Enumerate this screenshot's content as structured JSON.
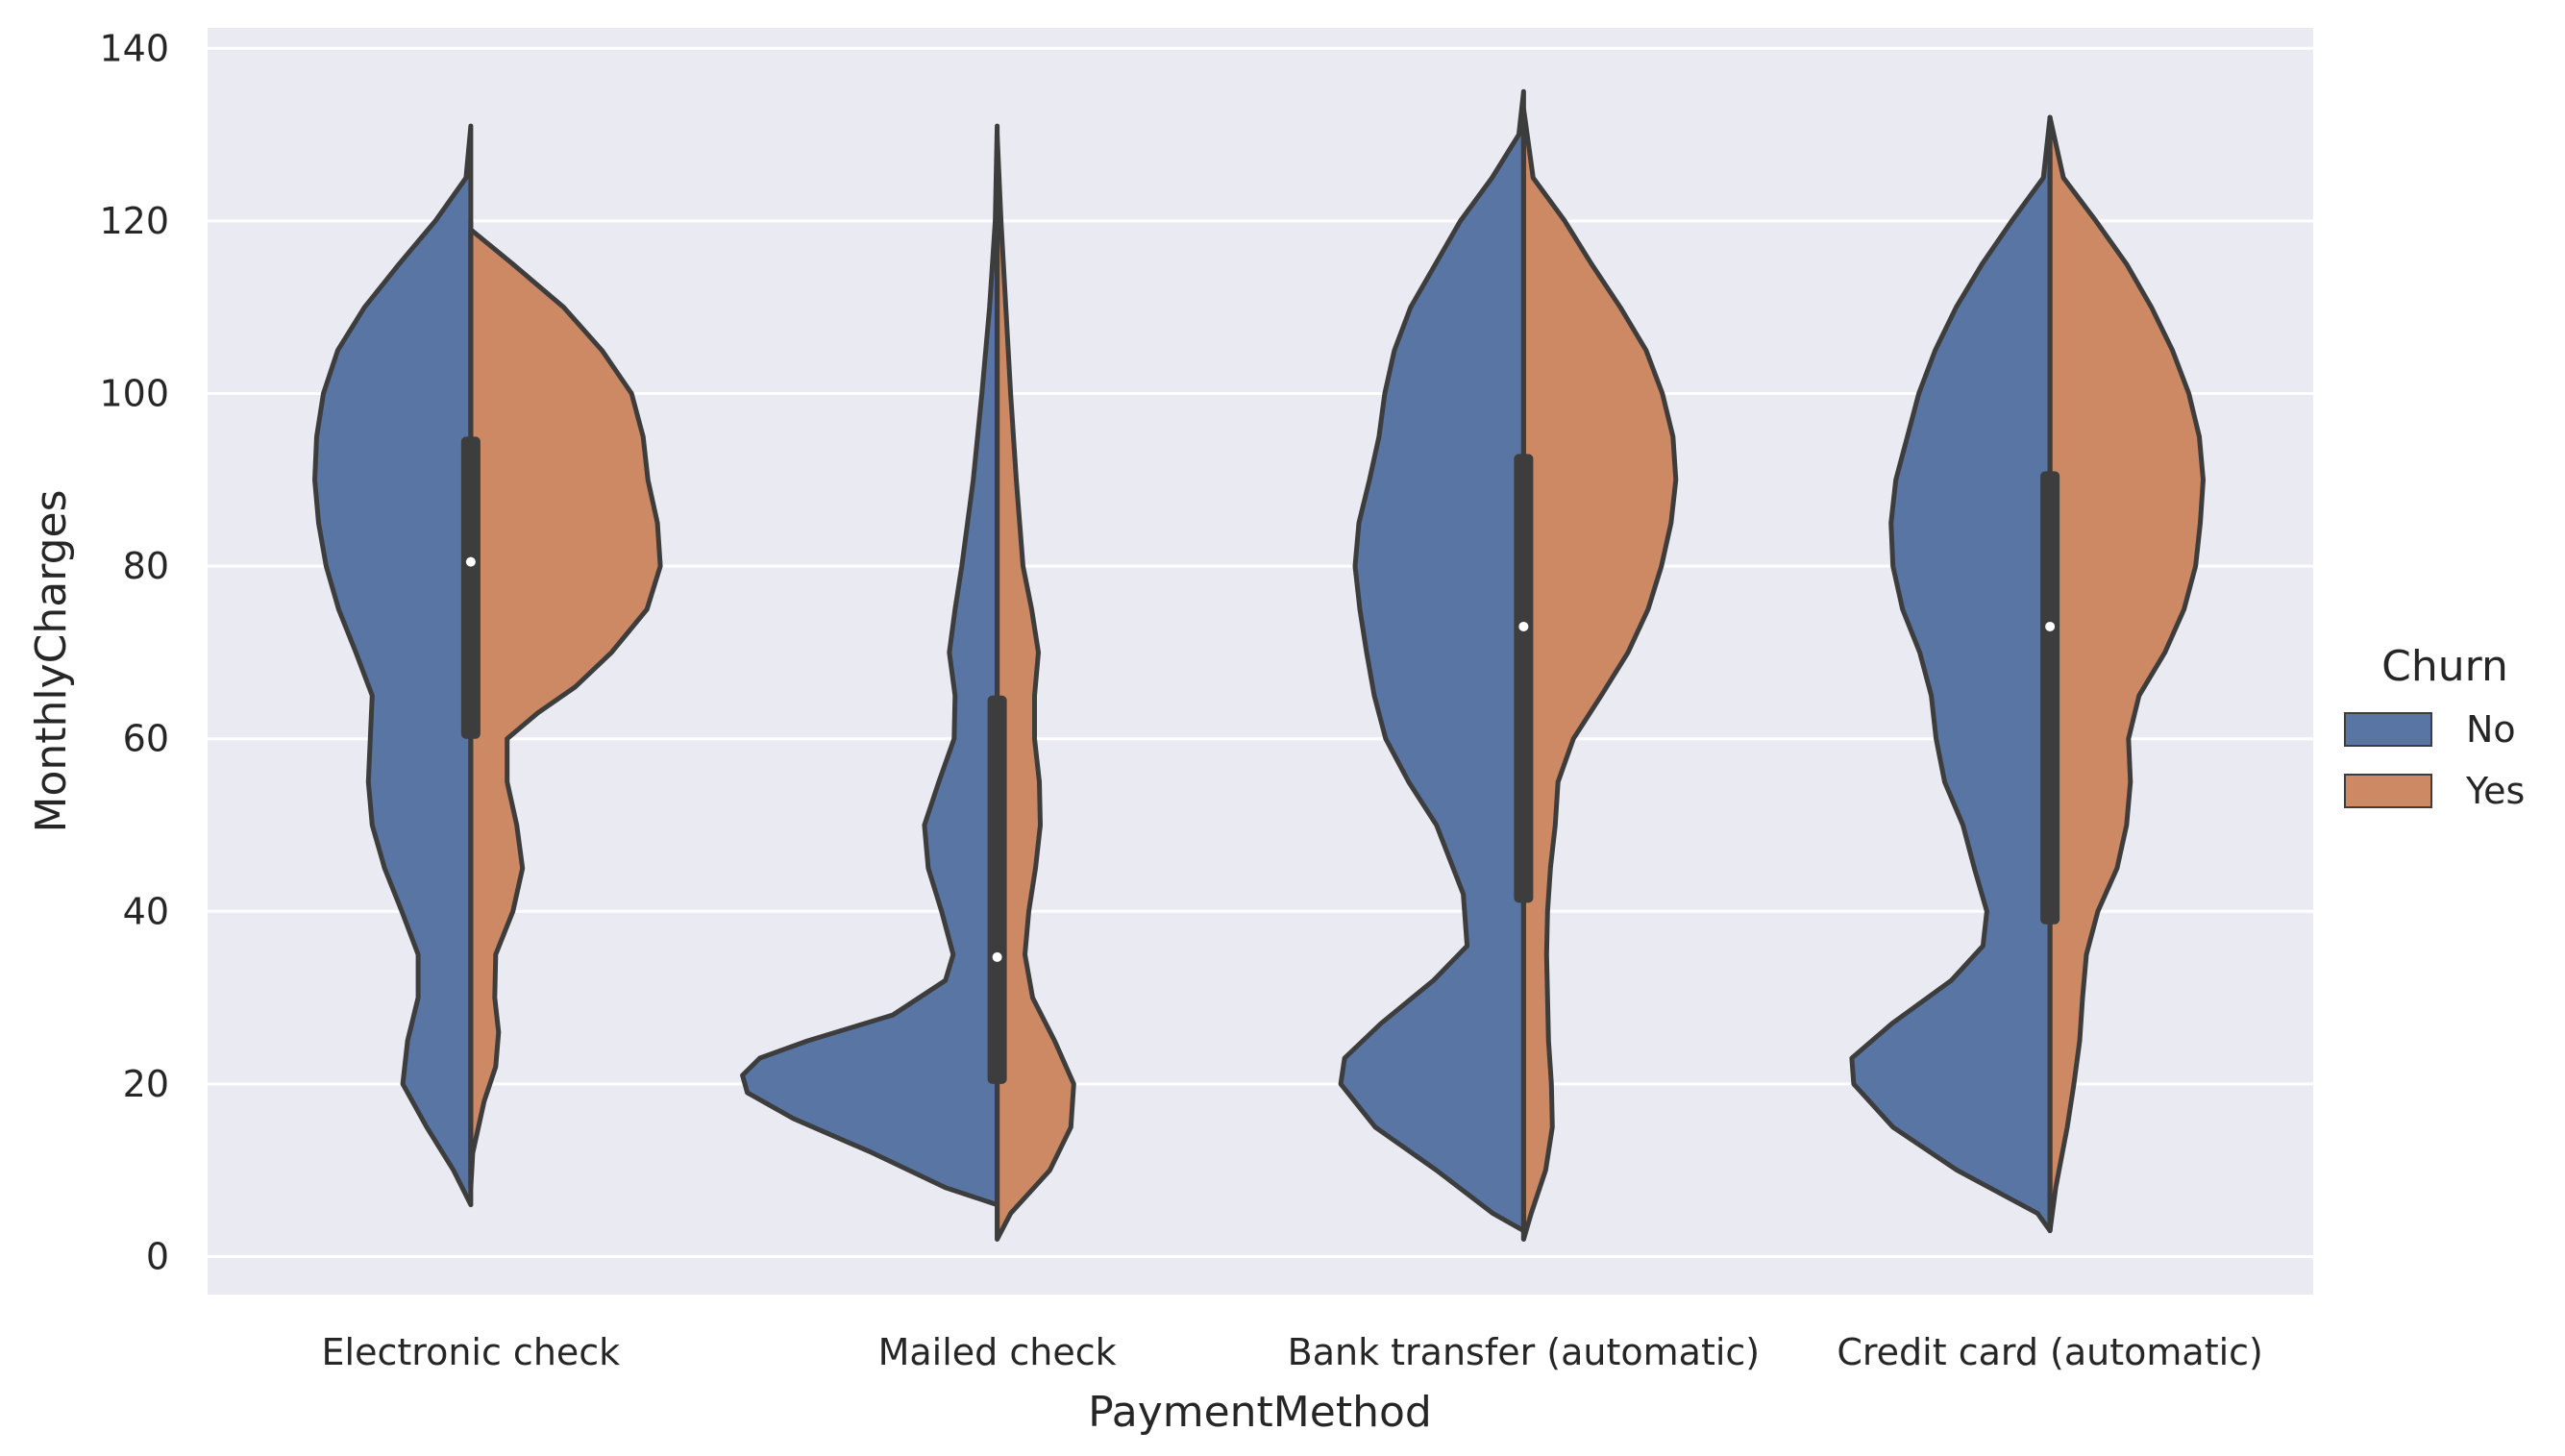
{
  "chart_data": {
    "type": "violin",
    "split": true,
    "title": "",
    "xlabel": "PaymentMethod",
    "ylabel": "MonthlyCharges",
    "ylim": [
      -4,
      142
    ],
    "yticks": [
      0,
      20,
      40,
      60,
      80,
      100,
      120,
      140
    ],
    "grid": true,
    "background": "#eaeaf2",
    "line_color": "#3d3d3d",
    "categories": [
      "Electronic check",
      "Mailed check",
      "Bank transfer (automatic)",
      "Credit card (automatic)"
    ],
    "legend": {
      "title": "Churn",
      "placement": "center-right",
      "entries": [
        {
          "label": "No",
          "color": "#5875a4"
        },
        {
          "label": "Yes",
          "color": "#cc8963"
        }
      ]
    },
    "series": [
      {
        "name": "No",
        "color": "#5875a4",
        "side": "left",
        "density": [
          {
            "range": [
              6,
              131
            ],
            "profile": [
              [
                6,
                0
              ],
              [
                10,
                0.18
              ],
              [
                15,
                0.46
              ],
              [
                20,
                0.71
              ],
              [
                25,
                0.66
              ],
              [
                30,
                0.55
              ],
              [
                35,
                0.55
              ],
              [
                40,
                0.72
              ],
              [
                45,
                0.9
              ],
              [
                50,
                1.03
              ],
              [
                55,
                1.07
              ],
              [
                60,
                1.05
              ],
              [
                65,
                1.03
              ],
              [
                70,
                1.2
              ],
              [
                75,
                1.38
              ],
              [
                80,
                1.51
              ],
              [
                85,
                1.59
              ],
              [
                90,
                1.63
              ],
              [
                95,
                1.61
              ],
              [
                100,
                1.54
              ],
              [
                105,
                1.39
              ],
              [
                110,
                1.11
              ],
              [
                115,
                0.75
              ],
              [
                120,
                0.37
              ],
              [
                125,
                0.05
              ],
              [
                131,
                0
              ]
            ]
          },
          {
            "range": [
              6,
              131
            ],
            "profile": [
              [
                6,
                0
              ],
              [
                8,
                0.54
              ],
              [
                12,
                1.3
              ],
              [
                16,
                2.13
              ],
              [
                19,
                2.61
              ],
              [
                21,
                2.66
              ],
              [
                23,
                2.48
              ],
              [
                25,
                1.98
              ],
              [
                28,
                1.09
              ],
              [
                32,
                0.54
              ],
              [
                35,
                0.46
              ],
              [
                40,
                0.58
              ],
              [
                45,
                0.72
              ],
              [
                50,
                0.76
              ],
              [
                55,
                0.61
              ],
              [
                60,
                0.45
              ],
              [
                65,
                0.44
              ],
              [
                70,
                0.5
              ],
              [
                75,
                0.44
              ],
              [
                80,
                0.37
              ],
              [
                90,
                0.25
              ],
              [
                100,
                0.16
              ],
              [
                110,
                0.08
              ],
              [
                120,
                0.02
              ],
              [
                131,
                0
              ]
            ]
          },
          {
            "range": [
              3,
              135
            ],
            "profile": [
              [
                3,
                0
              ],
              [
                5,
                0.32
              ],
              [
                10,
                0.91
              ],
              [
                15,
                1.55
              ],
              [
                20,
                1.91
              ],
              [
                23,
                1.87
              ],
              [
                27,
                1.49
              ],
              [
                32,
                0.94
              ],
              [
                36,
                0.59
              ],
              [
                42,
                0.63
              ],
              [
                50,
                0.91
              ],
              [
                55,
                1.2
              ],
              [
                60,
                1.44
              ],
              [
                65,
                1.56
              ],
              [
                70,
                1.64
              ],
              [
                75,
                1.71
              ],
              [
                80,
                1.76
              ],
              [
                85,
                1.72
              ],
              [
                90,
                1.61
              ],
              [
                95,
                1.51
              ],
              [
                100,
                1.45
              ],
              [
                105,
                1.35
              ],
              [
                110,
                1.18
              ],
              [
                115,
                0.92
              ],
              [
                120,
                0.66
              ],
              [
                125,
                0.33
              ],
              [
                130,
                0.05
              ],
              [
                135,
                0
              ]
            ]
          },
          {
            "range": [
              3,
              132
            ],
            "profile": [
              [
                3,
                0
              ],
              [
                5,
                0.13
              ],
              [
                10,
                0.97
              ],
              [
                15,
                1.64
              ],
              [
                20,
                2.05
              ],
              [
                23,
                2.07
              ],
              [
                27,
                1.65
              ],
              [
                32,
                1.03
              ],
              [
                36,
                0.7
              ],
              [
                40,
                0.66
              ],
              [
                45,
                0.79
              ],
              [
                50,
                0.91
              ],
              [
                55,
                1.1
              ],
              [
                60,
                1.19
              ],
              [
                65,
                1.24
              ],
              [
                70,
                1.36
              ],
              [
                75,
                1.54
              ],
              [
                80,
                1.64
              ],
              [
                85,
                1.66
              ],
              [
                90,
                1.61
              ],
              [
                95,
                1.49
              ],
              [
                100,
                1.37
              ],
              [
                105,
                1.2
              ],
              [
                110,
                0.98
              ],
              [
                115,
                0.71
              ],
              [
                120,
                0.4
              ],
              [
                125,
                0.07
              ],
              [
                132,
                0
              ]
            ]
          }
        ]
      },
      {
        "name": "Yes",
        "color": "#cc8963",
        "side": "right",
        "density": [
          {
            "range": [
              8,
              119
            ],
            "profile": [
              [
                8,
                0
              ],
              [
                12,
                0.02
              ],
              [
                18,
                0.14
              ],
              [
                22,
                0.26
              ],
              [
                26,
                0.29
              ],
              [
                30,
                0.25
              ],
              [
                35,
                0.26
              ],
              [
                40,
                0.44
              ],
              [
                45,
                0.54
              ],
              [
                50,
                0.48
              ],
              [
                55,
                0.38
              ],
              [
                60,
                0.38
              ],
              [
                63,
                0.7
              ],
              [
                66,
                1.09
              ],
              [
                70,
                1.47
              ],
              [
                75,
                1.84
              ],
              [
                80,
                1.98
              ],
              [
                85,
                1.95
              ],
              [
                90,
                1.85
              ],
              [
                95,
                1.8
              ],
              [
                100,
                1.68
              ],
              [
                105,
                1.37
              ],
              [
                110,
                0.97
              ],
              [
                115,
                0.44
              ],
              [
                119,
                0
              ]
            ]
          },
          {
            "range": [
              2,
              130
            ],
            "profile": [
              [
                2,
                0
              ],
              [
                5,
                0.14
              ],
              [
                10,
                0.55
              ],
              [
                15,
                0.77
              ],
              [
                20,
                0.8
              ],
              [
                25,
                0.6
              ],
              [
                30,
                0.37
              ],
              [
                35,
                0.29
              ],
              [
                40,
                0.33
              ],
              [
                45,
                0.4
              ],
              [
                50,
                0.45
              ],
              [
                55,
                0.44
              ],
              [
                60,
                0.39
              ],
              [
                65,
                0.39
              ],
              [
                70,
                0.43
              ],
              [
                75,
                0.36
              ],
              [
                80,
                0.27
              ],
              [
                90,
                0.2
              ],
              [
                100,
                0.14
              ],
              [
                110,
                0.09
              ],
              [
                120,
                0.04
              ],
              [
                130,
                0
              ]
            ]
          },
          {
            "range": [
              2,
              133
            ],
            "profile": [
              [
                2,
                0
              ],
              [
                5,
                0.08
              ],
              [
                10,
                0.23
              ],
              [
                15,
                0.3
              ],
              [
                20,
                0.29
              ],
              [
                25,
                0.26
              ],
              [
                30,
                0.25
              ],
              [
                35,
                0.24
              ],
              [
                40,
                0.25
              ],
              [
                45,
                0.28
              ],
              [
                50,
                0.33
              ],
              [
                55,
                0.36
              ],
              [
                60,
                0.52
              ],
              [
                65,
                0.81
              ],
              [
                70,
                1.09
              ],
              [
                75,
                1.3
              ],
              [
                80,
                1.44
              ],
              [
                85,
                1.54
              ],
              [
                90,
                1.59
              ],
              [
                95,
                1.56
              ],
              [
                100,
                1.45
              ],
              [
                105,
                1.28
              ],
              [
                110,
                1.01
              ],
              [
                115,
                0.71
              ],
              [
                120,
                0.43
              ],
              [
                125,
                0.1
              ],
              [
                133,
                0
              ]
            ]
          },
          {
            "range": [
              3,
              132
            ],
            "profile": [
              [
                3,
                0
              ],
              [
                8,
                0.06
              ],
              [
                15,
                0.18
              ],
              [
                20,
                0.25
              ],
              [
                25,
                0.31
              ],
              [
                30,
                0.34
              ],
              [
                35,
                0.38
              ],
              [
                40,
                0.5
              ],
              [
                45,
                0.7
              ],
              [
                50,
                0.8
              ],
              [
                55,
                0.84
              ],
              [
                60,
                0.82
              ],
              [
                65,
                0.93
              ],
              [
                70,
                1.2
              ],
              [
                75,
                1.4
              ],
              [
                80,
                1.52
              ],
              [
                85,
                1.57
              ],
              [
                90,
                1.6
              ],
              [
                95,
                1.56
              ],
              [
                100,
                1.45
              ],
              [
                105,
                1.28
              ],
              [
                110,
                1.06
              ],
              [
                115,
                0.8
              ],
              [
                120,
                0.48
              ],
              [
                125,
                0.14
              ],
              [
                132,
                0
              ]
            ]
          }
        ]
      }
    ],
    "box": [
      {
        "q1": 60,
        "median": 80.5,
        "q3": 95,
        "whisker_low": 8,
        "whisker_high": 120
      },
      {
        "q1": 20,
        "median": 34.7,
        "q3": 65,
        "whisker_low": 2,
        "whisker_high": 119
      },
      {
        "q1": 41,
        "median": 73,
        "q3": 93,
        "whisker_low": 2,
        "whisker_high": 133
      },
      {
        "q1": 38.5,
        "median": 73,
        "q3": 91,
        "whisker_low": 3,
        "whisker_high": 128
      }
    ]
  }
}
